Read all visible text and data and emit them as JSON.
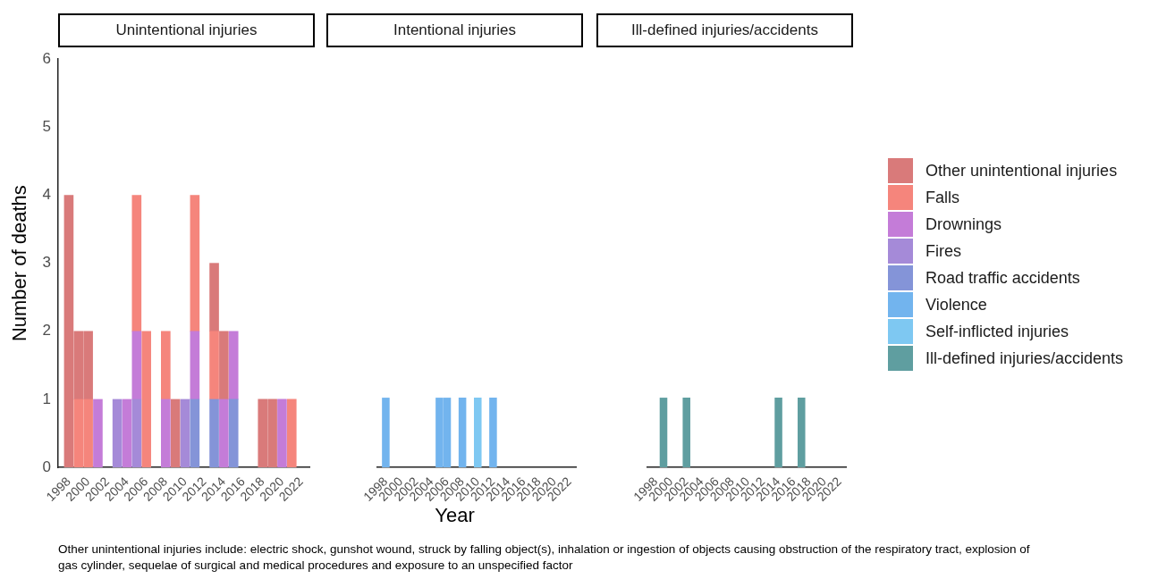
{
  "chart_data": [
    {
      "type": "bar",
      "title": "Unintentional injuries",
      "ylabel": "Number of deaths",
      "stacked": true,
      "legend": "right",
      "x": [
        1998,
        1999,
        2000,
        2001,
        2003,
        2004,
        2005,
        2006,
        2008,
        2009,
        2010,
        2011,
        2013,
        2014,
        2015,
        2018,
        2019,
        2020,
        2021
      ],
      "xlim": [
        1996.9,
        2022.9
      ],
      "xticks": [
        1998,
        2000,
        2002,
        2004,
        2006,
        2008,
        2010,
        2012,
        2014,
        2016,
        2018,
        2020,
        2022
      ],
      "ylim": [
        0,
        6
      ],
      "yticks": [
        0,
        1,
        2,
        3,
        4,
        5,
        6
      ],
      "series": [
        {
          "name": "Road traffic accidents",
          "color": "#8494d8",
          "values": [
            null,
            null,
            null,
            null,
            null,
            null,
            null,
            null,
            null,
            null,
            null,
            1,
            1,
            null,
            1,
            null,
            null,
            null,
            null
          ]
        },
        {
          "name": "Fires",
          "color": "#a58ad8",
          "values": [
            null,
            null,
            null,
            null,
            1,
            null,
            1,
            null,
            null,
            null,
            1,
            null,
            null,
            null,
            null,
            null,
            null,
            null,
            null
          ]
        },
        {
          "name": "Drownings",
          "color": "#c47cd8",
          "values": [
            null,
            null,
            null,
            1,
            null,
            1,
            1,
            null,
            1,
            null,
            null,
            1,
            null,
            1,
            1,
            null,
            null,
            1,
            null
          ]
        },
        {
          "name": "Falls",
          "color": "#f5857c",
          "values": [
            null,
            1,
            1,
            null,
            null,
            null,
            2,
            2,
            1,
            null,
            null,
            2,
            1,
            null,
            null,
            null,
            null,
            null,
            1
          ]
        },
        {
          "name": "Other unintentional injuries",
          "color": "#d97a7a",
          "values": [
            4,
            1,
            1,
            null,
            null,
            null,
            null,
            null,
            null,
            1,
            null,
            null,
            1,
            1,
            null,
            1,
            1,
            null,
            null
          ]
        }
      ],
      "annotations": [
        "Other unintentional injuries include: electric shock, gunshot wound, struck by falling object(s), inhalation or ingestion of objects causing obstruction of the respiratory tract, explosion of gas cylinder, sequelae of surgical and medical procedures and exposure to an unspecified factor"
      ]
    },
    {
      "type": "bar",
      "title": "Intentional injuries",
      "xlabel": "Year",
      "stacked": true,
      "legend": "right",
      "tick_labels": "x",
      "x": [
        1998,
        2005,
        2006,
        2008,
        2010,
        2012
      ],
      "xlim": [
        1996.9,
        2022.9
      ],
      "xticks": [
        1998,
        2000,
        2002,
        2004,
        2006,
        2008,
        2010,
        2012,
        2014,
        2016,
        2018,
        2020,
        2022
      ],
      "ylim": [
        0,
        6
      ],
      "yticks": [
        0,
        1,
        2,
        3,
        4,
        5,
        6
      ],
      "series": [
        {
          "name": "Self-inflicted injuries",
          "color": "#7ec8f2",
          "values": [
            null,
            null,
            null,
            null,
            1,
            null
          ]
        },
        {
          "name": "Violence",
          "color": "#72b4ee",
          "values": [
            1,
            1,
            1,
            1,
            null,
            1
          ]
        }
      ]
    },
    {
      "type": "bar",
      "title": "Ill-defined injuries/accidents",
      "stacked": true,
      "legend": "right",
      "tick_labels": "x",
      "x": [
        1999,
        2002,
        2014,
        2017
      ],
      "xlim": [
        1996.9,
        2022.9
      ],
      "xticks": [
        1998,
        2000,
        2002,
        2004,
        2006,
        2008,
        2010,
        2012,
        2014,
        2016,
        2018,
        2020,
        2022
      ],
      "ylim": [
        0,
        6
      ],
      "yticks": [
        0,
        1,
        2,
        3,
        4,
        5,
        6
      ],
      "series": [
        {
          "name": "Ill-defined injuries/accidents",
          "color": "#5f9ea0",
          "values": [
            1,
            1,
            1,
            1
          ]
        }
      ]
    }
  ]
}
